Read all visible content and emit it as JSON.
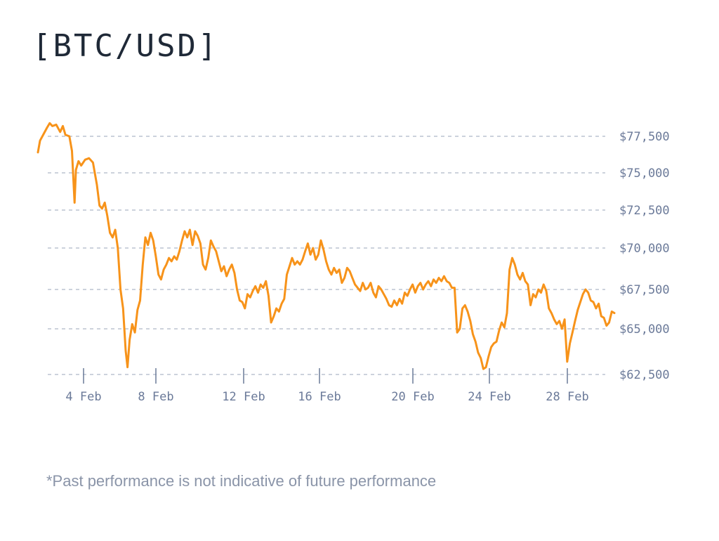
{
  "title": "[BTC/USD]",
  "footnote": "*Past performance is not indicative of future performance",
  "colors": {
    "line": "#f7931a",
    "grid": "#9aa5b8",
    "axis_text": "#6b7a99"
  },
  "chart_data": {
    "type": "line",
    "title": "[BTC/USD]",
    "xlabel": "",
    "ylabel": "",
    "x_range": [
      "1 Feb",
      "3 Mar"
    ],
    "ylim": [
      62000,
      78600
    ],
    "y_axis_position": "right",
    "grid": "horizontal-dashed",
    "y_ticks": [
      {
        "value": 77500,
        "label": "$77,500"
      },
      {
        "value": 75000,
        "label": "$75,000"
      },
      {
        "value": 72500,
        "label": "$72,500"
      },
      {
        "value": 70000,
        "label": "$70,000"
      },
      {
        "value": 67500,
        "label": "$67,500"
      },
      {
        "value": 65000,
        "label": "$65,000"
      },
      {
        "value": 62500,
        "label": "$62,500"
      }
    ],
    "x_ticks": [
      {
        "day": 4,
        "label": "4 Feb"
      },
      {
        "day": 8,
        "label": "8 Feb"
      },
      {
        "day": 12,
        "label": "12 Feb"
      },
      {
        "day": 16,
        "label": "16 Feb"
      },
      {
        "day": 20,
        "label": "20 Feb"
      },
      {
        "day": 24,
        "label": "24 Feb"
      },
      {
        "day": 28,
        "label": "28 Feb"
      }
    ],
    "series": [
      {
        "name": "",
        "points": [
          [
            2.1,
            76400
          ],
          [
            2.18,
            77200
          ],
          [
            2.3,
            77600
          ],
          [
            2.45,
            78100
          ],
          [
            2.55,
            78400
          ],
          [
            2.65,
            78200
          ],
          [
            2.8,
            78300
          ],
          [
            2.95,
            77800
          ],
          [
            3.05,
            78200
          ],
          [
            3.15,
            77600
          ],
          [
            3.3,
            77500
          ],
          [
            3.4,
            76500
          ],
          [
            3.5,
            73000
          ],
          [
            3.55,
            75200
          ],
          [
            3.65,
            75800
          ],
          [
            3.75,
            75500
          ],
          [
            3.9,
            75900
          ],
          [
            4.05,
            76000
          ],
          [
            4.2,
            75700
          ],
          [
            4.35,
            74200
          ],
          [
            4.45,
            72800
          ],
          [
            4.55,
            72600
          ],
          [
            4.65,
            73000
          ],
          [
            4.75,
            72100
          ],
          [
            4.85,
            71000
          ],
          [
            4.95,
            70700
          ],
          [
            5.05,
            71200
          ],
          [
            5.15,
            70000
          ],
          [
            5.25,
            67500
          ],
          [
            5.35,
            66300
          ],
          [
            5.45,
            63800
          ],
          [
            5.52,
            62900
          ],
          [
            5.6,
            64400
          ],
          [
            5.7,
            65300
          ],
          [
            5.8,
            64800
          ],
          [
            5.9,
            66200
          ],
          [
            6.0,
            66800
          ],
          [
            6.1,
            69000
          ],
          [
            6.2,
            70700
          ],
          [
            6.3,
            70200
          ],
          [
            6.4,
            71000
          ],
          [
            6.5,
            70500
          ],
          [
            6.6,
            69500
          ],
          [
            6.7,
            68400
          ],
          [
            6.8,
            68100
          ],
          [
            6.9,
            68700
          ],
          [
            7.0,
            69000
          ],
          [
            7.1,
            69400
          ],
          [
            7.2,
            69200
          ],
          [
            7.3,
            69500
          ],
          [
            7.4,
            69300
          ],
          [
            7.5,
            69800
          ],
          [
            7.6,
            70500
          ],
          [
            7.7,
            71100
          ],
          [
            7.8,
            70700
          ],
          [
            7.9,
            71200
          ],
          [
            8.0,
            70200
          ],
          [
            8.1,
            71100
          ],
          [
            8.2,
            70800
          ],
          [
            8.3,
            70300
          ],
          [
            8.4,
            69000
          ],
          [
            8.5,
            68700
          ],
          [
            8.6,
            69400
          ],
          [
            8.7,
            70500
          ],
          [
            8.8,
            70100
          ],
          [
            8.9,
            69800
          ],
          [
            9.0,
            69200
          ],
          [
            9.1,
            68600
          ],
          [
            9.2,
            68900
          ],
          [
            9.3,
            68300
          ],
          [
            9.4,
            68700
          ],
          [
            9.5,
            69000
          ],
          [
            9.6,
            68500
          ],
          [
            9.7,
            67500
          ],
          [
            9.8,
            66800
          ],
          [
            9.9,
            66700
          ],
          [
            10.0,
            66300
          ],
          [
            10.1,
            67200
          ],
          [
            10.2,
            67000
          ],
          [
            10.3,
            67400
          ],
          [
            10.4,
            67700
          ],
          [
            10.5,
            67300
          ],
          [
            10.6,
            67800
          ],
          [
            10.7,
            67600
          ],
          [
            10.8,
            68000
          ],
          [
            10.9,
            67100
          ],
          [
            11.0,
            65400
          ],
          [
            11.1,
            65800
          ],
          [
            11.2,
            66300
          ],
          [
            11.3,
            66100
          ],
          [
            11.4,
            66600
          ],
          [
            11.5,
            66900
          ],
          [
            11.6,
            68400
          ],
          [
            11.7,
            68900
          ],
          [
            11.8,
            69400
          ],
          [
            11.9,
            69000
          ],
          [
            12.0,
            69200
          ],
          [
            12.1,
            69000
          ],
          [
            12.2,
            69300
          ],
          [
            12.3,
            69800
          ],
          [
            12.4,
            70300
          ],
          [
            12.5,
            69600
          ],
          [
            12.6,
            70000
          ],
          [
            12.7,
            69300
          ],
          [
            12.8,
            69600
          ],
          [
            12.9,
            70500
          ],
          [
            13.0,
            69900
          ],
          [
            13.1,
            69200
          ],
          [
            13.2,
            68700
          ],
          [
            13.3,
            68400
          ],
          [
            13.4,
            68800
          ],
          [
            13.5,
            68500
          ],
          [
            13.6,
            68700
          ],
          [
            13.7,
            67900
          ],
          [
            13.8,
            68200
          ],
          [
            13.9,
            68800
          ],
          [
            14.0,
            68600
          ],
          [
            14.1,
            68200
          ],
          [
            14.2,
            67800
          ],
          [
            14.3,
            67600
          ],
          [
            14.4,
            67400
          ],
          [
            14.5,
            67900
          ],
          [
            14.6,
            67500
          ],
          [
            14.7,
            67600
          ],
          [
            14.8,
            67900
          ],
          [
            14.9,
            67300
          ],
          [
            15.0,
            67000
          ],
          [
            15.1,
            67700
          ],
          [
            15.2,
            67500
          ],
          [
            15.3,
            67200
          ],
          [
            15.4,
            66900
          ],
          [
            15.5,
            66500
          ],
          [
            15.6,
            66400
          ],
          [
            15.7,
            66800
          ],
          [
            15.8,
            66500
          ],
          [
            15.9,
            66900
          ],
          [
            16.0,
            66600
          ],
          [
            16.1,
            67300
          ],
          [
            16.2,
            67100
          ],
          [
            16.3,
            67500
          ],
          [
            16.4,
            67800
          ],
          [
            16.5,
            67300
          ],
          [
            16.6,
            67700
          ],
          [
            16.7,
            67900
          ],
          [
            16.8,
            67500
          ],
          [
            16.9,
            67800
          ],
          [
            17.0,
            68000
          ],
          [
            17.1,
            67700
          ],
          [
            17.2,
            68100
          ],
          [
            17.3,
            67900
          ],
          [
            17.4,
            68200
          ],
          [
            17.5,
            68000
          ],
          [
            17.6,
            68300
          ],
          [
            17.7,
            68000
          ],
          [
            17.8,
            67900
          ],
          [
            17.9,
            67600
          ],
          [
            18.0,
            67600
          ],
          [
            18.1,
            64800
          ],
          [
            18.2,
            65000
          ],
          [
            18.3,
            66300
          ],
          [
            18.4,
            66500
          ],
          [
            18.5,
            66100
          ],
          [
            18.6,
            65500
          ],
          [
            18.7,
            64700
          ],
          [
            18.8,
            64300
          ],
          [
            18.9,
            63700
          ],
          [
            19.0,
            63400
          ],
          [
            19.1,
            62800
          ],
          [
            19.2,
            62900
          ],
          [
            19.3,
            63500
          ],
          [
            19.4,
            64000
          ],
          [
            19.5,
            64200
          ],
          [
            19.6,
            64300
          ],
          [
            19.7,
            64900
          ],
          [
            19.8,
            65400
          ],
          [
            19.9,
            65100
          ],
          [
            20.0,
            66000
          ],
          [
            20.1,
            68700
          ],
          [
            20.2,
            69400
          ],
          [
            20.3,
            69000
          ],
          [
            20.4,
            68400
          ],
          [
            20.5,
            68100
          ],
          [
            20.6,
            68500
          ],
          [
            20.7,
            68000
          ],
          [
            20.8,
            67800
          ],
          [
            20.9,
            66500
          ],
          [
            21.0,
            67200
          ],
          [
            21.1,
            67000
          ],
          [
            21.2,
            67500
          ],
          [
            21.3,
            67300
          ],
          [
            21.4,
            67800
          ],
          [
            21.5,
            67400
          ],
          [
            21.6,
            66300
          ],
          [
            21.7,
            66000
          ],
          [
            21.8,
            65600
          ],
          [
            21.9,
            65300
          ],
          [
            22.0,
            65500
          ],
          [
            22.1,
            65000
          ],
          [
            22.2,
            65600
          ],
          [
            22.3,
            63200
          ],
          [
            22.4,
            64200
          ],
          [
            22.5,
            64800
          ],
          [
            22.6,
            65500
          ],
          [
            22.7,
            66200
          ],
          [
            22.8,
            66700
          ],
          [
            22.9,
            67200
          ],
          [
            23.0,
            67500
          ],
          [
            23.1,
            67300
          ],
          [
            23.2,
            66800
          ],
          [
            23.3,
            66700
          ],
          [
            23.4,
            66300
          ],
          [
            23.5,
            66600
          ],
          [
            23.6,
            65800
          ],
          [
            23.7,
            65700
          ],
          [
            23.8,
            65200
          ],
          [
            23.9,
            65400
          ],
          [
            24.0,
            66100
          ],
          [
            24.1,
            66000
          ]
        ]
      }
    ]
  }
}
